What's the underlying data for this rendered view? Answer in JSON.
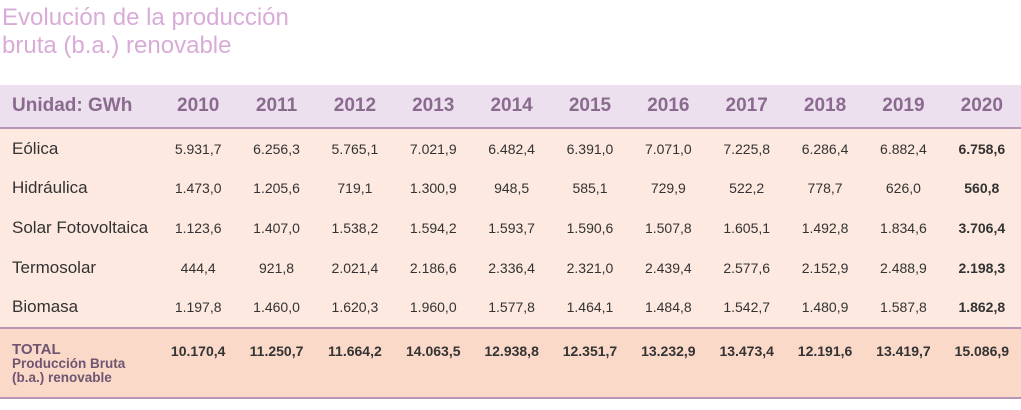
{
  "title_lines": [
    "Evolución de la producción",
    "bruta (b.a.) renovable"
  ],
  "table": {
    "header": [
      "Unidad: GWh",
      "2010",
      "2011",
      "2012",
      "2013",
      "2014",
      "2015",
      "2016",
      "2017",
      "2018",
      "2019",
      "2020"
    ],
    "rows": [
      [
        "Eólica",
        "5.931,7",
        "6.256,3",
        "5.765,1",
        "7.021,9",
        "6.482,4",
        "6.391,0",
        "7.071,0",
        "7.225,8",
        "6.286,4",
        "6.882,4",
        "6.758,6"
      ],
      [
        "Hidráulica",
        "1.473,0",
        "1.205,6",
        "719,1",
        "1.300,9",
        "948,5",
        "585,1",
        "729,9",
        "522,2",
        "778,7",
        "626,0",
        "560,8"
      ],
      [
        "Solar Fotovoltaica",
        "1.123,6",
        "1.407,0",
        "1.538,2",
        "1.594,2",
        "1.593,7",
        "1.590,6",
        "1.507,8",
        "1.605,1",
        "1.492,8",
        "1.834,6",
        "3.706,4"
      ],
      [
        "Termosolar",
        "444,4",
        "921,8",
        "2.021,4",
        "2.186,6",
        "2.336,4",
        "2.321,0",
        "2.439,4",
        "2.577,6",
        "2.152,9",
        "2.488,9",
        "2.198,3"
      ],
      [
        "Biomasa",
        "1.197,8",
        "1.460,0",
        "1.620,3",
        "1.960,0",
        "1.577,8",
        "1.464,1",
        "1.484,8",
        "1.542,7",
        "1.480,9",
        "1.587,8",
        "1.862,8"
      ]
    ],
    "total": {
      "label": "TOTAL",
      "sublabel_lines": [
        "Producción Bruta",
        "(b.a.) renovable"
      ],
      "values": [
        "10.170,4",
        "11.250,7",
        "11.664,2",
        "14.063,5",
        "12.938,8",
        "12.351,7",
        "13.232,9",
        "13.473,4",
        "12.191,6",
        "13.419,7",
        "15.086,9"
      ]
    }
  }
}
